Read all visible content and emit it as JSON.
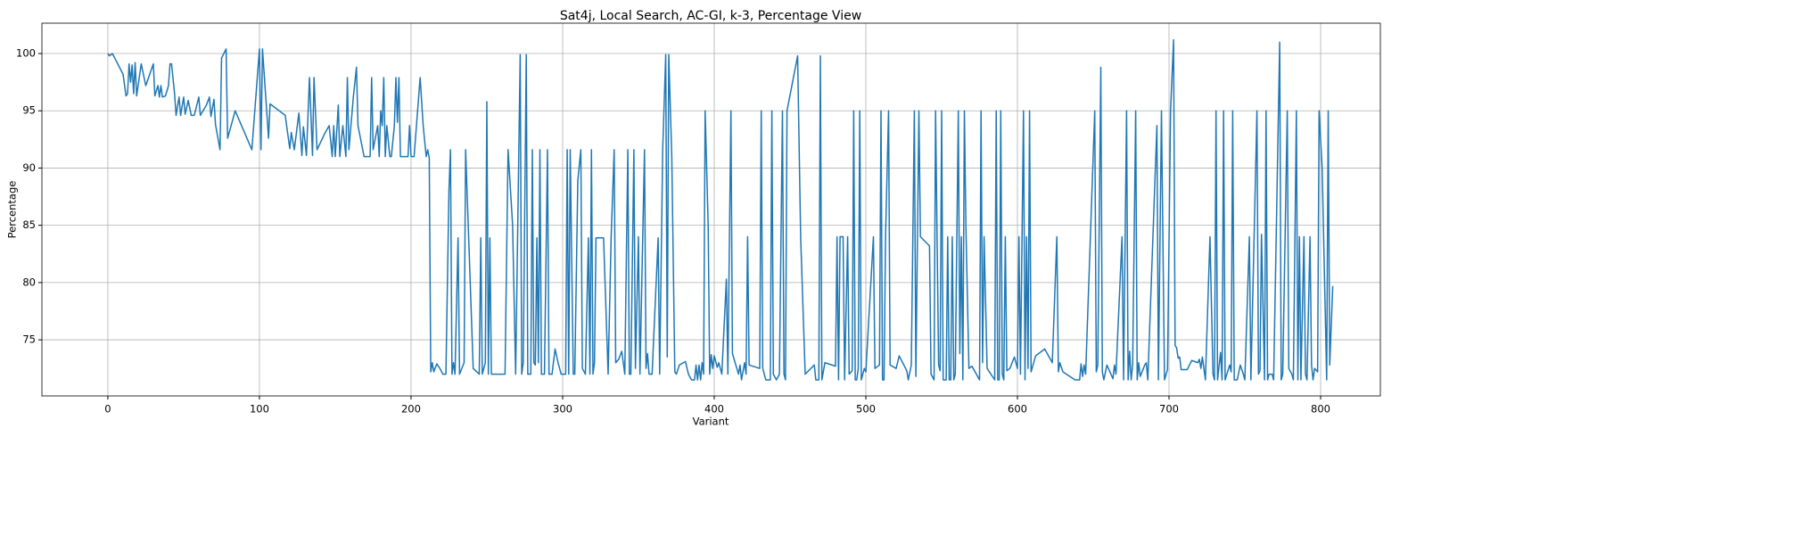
{
  "chart_data": {
    "type": "line",
    "title": "Sat4j, Local Search, AC-GI, k-3, Percentage View",
    "xlabel": "Variant",
    "ylabel": "Percentage",
    "color": "#1f77b4",
    "grid": true,
    "xlim": [
      -43.5,
      839.4
    ],
    "ylim": [
      70.1,
      102.65
    ],
    "xticks": [
      0,
      100,
      200,
      300,
      400,
      500,
      600,
      700,
      800
    ],
    "yticks": [
      75,
      80,
      85,
      90,
      95,
      100
    ],
    "x": [
      0,
      1,
      3,
      10,
      12,
      13,
      14,
      15,
      16,
      17,
      18,
      19,
      22,
      25,
      30,
      31,
      33,
      34,
      35,
      36,
      38,
      40,
      41,
      42,
      44,
      45,
      47,
      48,
      50,
      51,
      53,
      55,
      57,
      60,
      61,
      65,
      67,
      68,
      70,
      71,
      74,
      75,
      78,
      79,
      84,
      95,
      100,
      101,
      102,
      106,
      107,
      117,
      120,
      121,
      123,
      126,
      128,
      129,
      131,
      133,
      135,
      136,
      138,
      143,
      146,
      148,
      149,
      150,
      152,
      153,
      155,
      157,
      158,
      159,
      162,
      164,
      165,
      169,
      173,
      174,
      175,
      178,
      179,
      180,
      181,
      182,
      183,
      184,
      186,
      187,
      189,
      190,
      191,
      192,
      193,
      198,
      199,
      200,
      202,
      206,
      208,
      210,
      211,
      212,
      213,
      214,
      215,
      217,
      219,
      221,
      223,
      225,
      226,
      227,
      228,
      229,
      231,
      232,
      235,
      236,
      241,
      245,
      246,
      247,
      249,
      250,
      251,
      252,
      253,
      262,
      264,
      267,
      269,
      272,
      273,
      274,
      276,
      277,
      279,
      280,
      281,
      282,
      283,
      284,
      285,
      286,
      288,
      290,
      291,
      293,
      295,
      297,
      299,
      302,
      303,
      304,
      305,
      307,
      308,
      310,
      312,
      313,
      315,
      317,
      318,
      319,
      320,
      321,
      322,
      327,
      330,
      332,
      334,
      335,
      337,
      339,
      341,
      343,
      344,
      345,
      347,
      348,
      350,
      351,
      354,
      355,
      356,
      357,
      359,
      363,
      364,
      366,
      368,
      369,
      370,
      372,
      374,
      375,
      377,
      381,
      383,
      385,
      387,
      388,
      389,
      390,
      391,
      392,
      393,
      394,
      396,
      397,
      398,
      399,
      400,
      402,
      403,
      405,
      408,
      409,
      411,
      412,
      416,
      417,
      418,
      420,
      421,
      422,
      423,
      430,
      431,
      432,
      434,
      437,
      438,
      439,
      441,
      443,
      445,
      446,
      447,
      448,
      455,
      457,
      460,
      466,
      467,
      469,
      470,
      471,
      473,
      480,
      481,
      482,
      483,
      485,
      486,
      488,
      489,
      491,
      492,
      493,
      494,
      495,
      496,
      497,
      499,
      500,
      505,
      506,
      509,
      510,
      511,
      512,
      513,
      515,
      516,
      520,
      522,
      527,
      528,
      530,
      532,
      533,
      535,
      536,
      542,
      543,
      545,
      546,
      548,
      549,
      550,
      551,
      553,
      554,
      555,
      556,
      557,
      558,
      559,
      561,
      562,
      563,
      564,
      565,
      566,
      568,
      570,
      575,
      576,
      577,
      578,
      580,
      585,
      586,
      587,
      588,
      589,
      590,
      591,
      592,
      593,
      595,
      598,
      600,
      601,
      602,
      604,
      605,
      606,
      607,
      608,
      609,
      612,
      618,
      623,
      626,
      627,
      628,
      630,
      638,
      641,
      642,
      643,
      644,
      645,
      651,
      652,
      653,
      655,
      656,
      657,
      659,
      661,
      663,
      664,
      665,
      669,
      670,
      672,
      673,
      674,
      675,
      676,
      678,
      679,
      680,
      681,
      684,
      685,
      686,
      692,
      693,
      695,
      697,
      699,
      701,
      703,
      704,
      705,
      706,
      707,
      708,
      712,
      715,
      719,
      720,
      721,
      722,
      724,
      727,
      729,
      730,
      731,
      732,
      734,
      735,
      736,
      737,
      740,
      741,
      742,
      743,
      745,
      747,
      749,
      750,
      753,
      754,
      758,
      759,
      760,
      761,
      763,
      764,
      765,
      766,
      768,
      769,
      773,
      774,
      775,
      778,
      779,
      781,
      782,
      784,
      785,
      786,
      787,
      789,
      790,
      791,
      793,
      794,
      795,
      796,
      798,
      799,
      801,
      804,
      805,
      806,
      808
    ],
    "values": [
      100,
      99.8,
      100,
      98.2,
      96.3,
      96.5,
      99.1,
      97.5,
      99,
      96.5,
      99.2,
      96.3,
      99.1,
      97.2,
      99.1,
      96.3,
      97.2,
      96.2,
      97.2,
      96.2,
      96.3,
      97.2,
      99.1,
      99.1,
      96.5,
      94.6,
      96.2,
      94.6,
      96.2,
      94.7,
      95.9,
      94.6,
      94.6,
      96.2,
      94.6,
      95.5,
      96.2,
      94.5,
      96,
      93.8,
      91.6,
      99.6,
      100.4,
      92.6,
      95,
      91.6,
      100.4,
      91.6,
      100.4,
      92.6,
      95.6,
      94.6,
      91.7,
      93.1,
      91.6,
      94.8,
      91.1,
      93.6,
      91.1,
      97.9,
      91.1,
      97.9,
      91.6,
      93,
      93.7,
      91,
      93.7,
      91,
      95.5,
      91,
      93.7,
      91,
      97.9,
      91.6,
      96.3,
      98.8,
      93.7,
      91,
      91,
      97.9,
      91.6,
      93.7,
      91,
      95,
      93.7,
      97.9,
      91,
      93.7,
      91,
      91,
      93.7,
      97.9,
      94,
      97.9,
      91,
      91,
      93.7,
      91,
      91,
      97.9,
      93.7,
      91,
      91.6,
      90.9,
      72.2,
      73,
      72.2,
      72.9,
      72.5,
      72,
      72,
      88,
      91.6,
      72,
      73,
      72,
      83.9,
      72,
      73,
      91.6,
      72.5,
      72,
      83.9,
      72,
      73,
      95.8,
      72,
      83.9,
      72,
      72,
      91.6,
      85,
      72,
      99.9,
      72,
      73,
      99.9,
      72,
      72,
      91.6,
      73,
      72.8,
      83.9,
      73,
      91.6,
      72,
      72,
      91.6,
      72,
      72,
      74.2,
      73,
      72,
      72,
      91.6,
      72,
      91.6,
      72,
      72,
      88.9,
      91.6,
      72.5,
      72,
      83.9,
      72,
      91.6,
      72,
      73,
      83.9,
      83.9,
      72,
      84,
      91.6,
      73,
      73.3,
      74,
      72,
      91.6,
      72,
      72,
      91.6,
      72.5,
      84,
      72,
      91.6,
      72.5,
      73.8,
      72,
      72,
      83.9,
      72,
      91.6,
      99.9,
      73.5,
      99.9,
      91,
      72.2,
      72,
      72.8,
      73.1,
      72,
      71.5,
      71.5,
      72.8,
      71.5,
      72.8,
      71.5,
      73,
      72,
      95,
      85,
      72,
      73.7,
      72.5,
      73.6,
      72.6,
      73,
      72,
      80.3,
      72,
      95,
      73.8,
      72,
      72.8,
      71.5,
      73,
      72,
      84,
      72.8,
      72.5,
      95,
      72.5,
      71.5,
      71.5,
      95,
      72,
      71.5,
      72,
      95,
      72,
      71.5,
      95,
      99.8,
      84,
      72,
      72.8,
      71.5,
      71.5,
      99.8,
      71.5,
      73,
      72.7,
      84,
      71.5,
      84,
      84,
      71.5,
      84,
      72,
      72.3,
      95,
      71.5,
      71.5,
      72.5,
      95,
      71.5,
      72.5,
      72.2,
      84,
      72.5,
      72.8,
      95,
      71.5,
      71.5,
      84,
      95,
      72.8,
      72.5,
      73.6,
      72.3,
      71.5,
      72.8,
      95,
      71.8,
      95,
      84,
      83.2,
      72,
      71.5,
      95,
      72.8,
      72.3,
      95,
      71.5,
      71.5,
      84,
      71.5,
      71.5,
      84,
      71.5,
      72,
      95,
      73.8,
      84,
      71.5,
      95,
      85,
      72.5,
      72.7,
      71.5,
      95,
      73,
      84,
      72.5,
      71.5,
      95,
      71.5,
      71.5,
      95,
      72,
      71.5,
      84,
      72.3,
      72.5,
      73.5,
      72.5,
      84,
      72,
      95,
      71.5,
      84,
      72.5,
      95,
      72.2,
      73.6,
      74.2,
      73,
      84,
      72.2,
      73,
      72.2,
      71.5,
      71.5,
      72.9,
      71.8,
      72.8,
      72,
      95,
      72.2,
      72.8,
      98.8,
      72.2,
      71.5,
      72.8,
      72.2,
      71.6,
      72.8,
      72,
      84,
      71.5,
      95,
      71.5,
      74,
      71.5,
      72.8,
      95,
      71.5,
      73,
      71.8,
      72.8,
      73,
      71.5,
      93.7,
      71.5,
      95,
      71.5,
      72.4,
      95,
      101.2,
      74.5,
      74.3,
      73.4,
      73.5,
      72.4,
      72.4,
      73.2,
      73,
      73.3,
      72.5,
      73.5,
      71.5,
      84,
      72,
      71.5,
      95,
      71.5,
      73.9,
      71.5,
      95,
      71.5,
      72.8,
      72.2,
      95,
      71.5,
      71.5,
      72.8,
      72,
      71.5,
      84,
      71.5,
      95,
      72,
      72.3,
      84.2,
      71.5,
      95,
      71.5,
      72,
      72,
      71.5,
      101,
      71.5,
      72,
      95,
      72.5,
      72,
      71.5,
      95,
      71.5,
      84,
      71.5,
      84,
      72,
      71.5,
      84,
      72.8,
      71.5,
      72.5,
      72.2,
      95,
      90,
      71.5,
      95,
      72.8,
      79.7
    ]
  }
}
